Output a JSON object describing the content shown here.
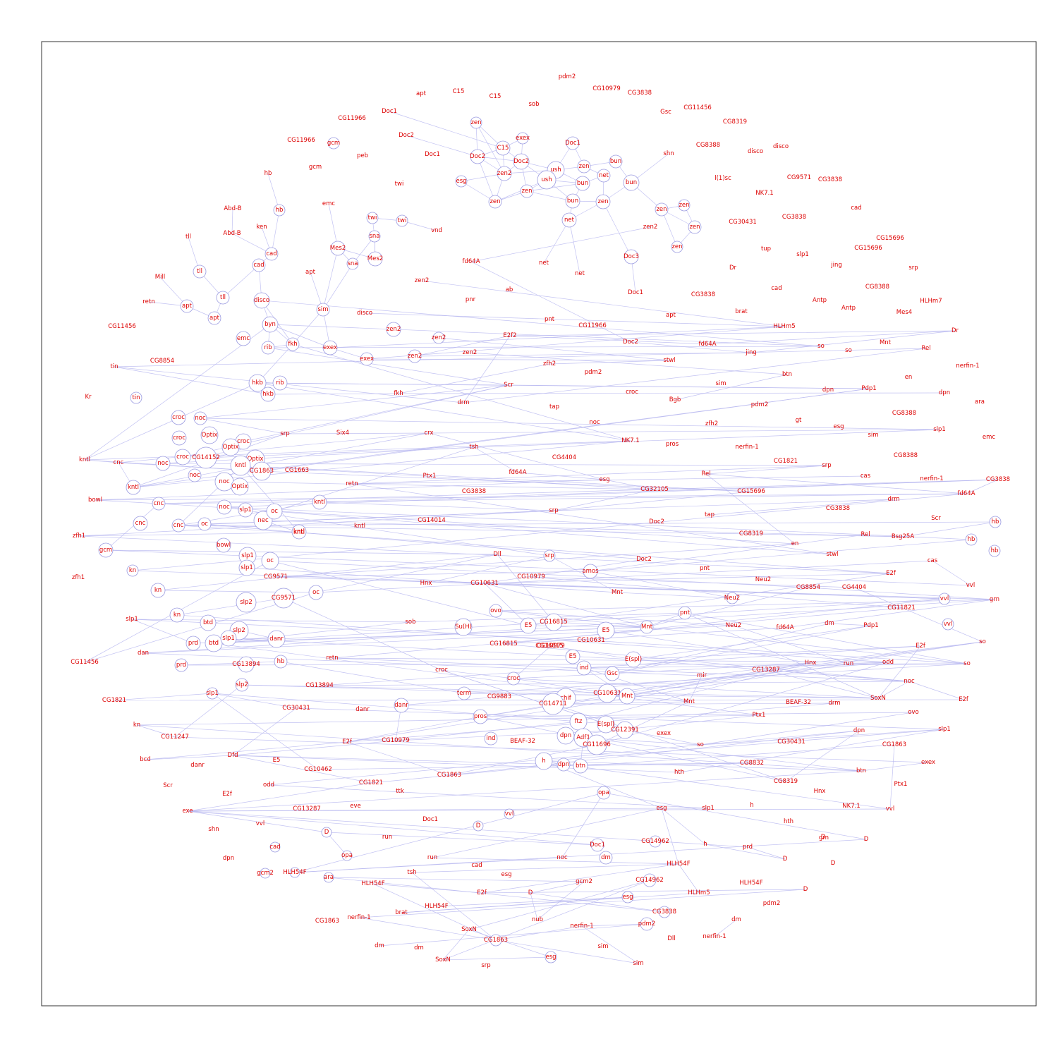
{
  "colors": {
    "label": "#dd0000",
    "edge": "#b8b8f0",
    "node_stroke": "#9a9ae0",
    "frame": "#333333"
  },
  "node_labels": [
    "pdm2",
    "CG10979",
    "CG3838",
    "apt",
    "C15",
    "C15",
    "CG11456",
    "Gsc",
    "CG8319",
    "sob",
    "Doc1",
    "CG11966",
    "Doc2",
    "zen",
    "exex",
    "CG11966",
    "gcm",
    "peb",
    "Doc1",
    "Doc2",
    "C15",
    "Doc1",
    "Doc2",
    "CG8388",
    "disco",
    "disco",
    "shn",
    "zen",
    "gcm",
    "ush",
    "bun",
    "hb",
    "esg",
    "zen2",
    "ush",
    "net",
    "twi",
    "bun",
    "emc",
    "Abd-B",
    "hb",
    "zen",
    "zen",
    "bun",
    "bun",
    "net",
    "zen",
    "CG9571",
    "CG3838",
    "l(1)sc",
    "zen",
    "NK7.1",
    "cad",
    "CG3838",
    "Abd-B",
    "ken",
    "twi",
    "zen",
    "twi",
    "vnd",
    "zen2",
    "zen",
    "CG30431",
    "cad",
    "sna",
    "tll",
    "cad",
    "Mes2",
    "CG15696",
    "sna",
    "Mes2",
    "zen",
    "slp1",
    "Doc3",
    "fd64A",
    "net",
    "CG15696",
    "net",
    "tup",
    "jing",
    "srp",
    "Mill",
    "tll",
    "apt",
    "Dr",
    "Doc1",
    "ab",
    "CG3838",
    "zen2",
    "cad",
    "CG8388",
    "tll",
    "retn",
    "apt",
    "disco",
    "pnr",
    "Antp",
    "HLHm7",
    "apt",
    "Antp",
    "CG11456",
    "pnt",
    "CG11966",
    "sim",
    "apt",
    "Mes4",
    "brat",
    "disco",
    "Doc2",
    "zen2",
    "HLHm5",
    "Dr",
    "emc",
    "fd64A",
    "so",
    "E2f2",
    "Mnt",
    "Rel",
    "byn",
    "jing",
    "so",
    "rib",
    "zen2",
    "fkh",
    "exex",
    "zen2",
    "zen2",
    "exex",
    "CG8854",
    "stwl",
    "tin",
    "zfh2",
    "nerfin-1",
    "pdm2",
    "btn",
    "Scr",
    "hkb",
    "rib",
    "sim",
    "en",
    "dpn",
    "Pdp1",
    "tin",
    "hkb",
    "Kr",
    "fkh",
    "croc",
    "dpn",
    "Bgb",
    "drm",
    "pdm2",
    "noc",
    "tap",
    "ara",
    "CG8388",
    "gt",
    "croc",
    "esg",
    "zfh2",
    "croc",
    "noc",
    "Optix",
    "Six4",
    "slp1",
    "srp",
    "crx",
    "sim",
    "croc",
    "croc",
    "CG14152",
    "Optix",
    "NK7.1",
    "pros",
    "nerfin-1",
    "emc",
    "kntl",
    "cnc",
    "kntl",
    "Optix",
    "tsh",
    "noc",
    "CG1663",
    "CG8388",
    "CG4404",
    "CG1821",
    "srp",
    "noc",
    "Ptx1",
    "fd64A",
    "Rel",
    "kntl",
    "CG1863",
    "CG3838",
    "noc",
    "Optix",
    "cas",
    "retn",
    "nerfin-1",
    "CG3838",
    "esg",
    "CG32105",
    "kntl",
    "cnc",
    "CG15696",
    "bowl",
    "fd64A",
    "noc",
    "kntl",
    "oc",
    "srp",
    "tap",
    "drm",
    "slp1",
    "CG3838",
    "CG14014",
    "nec",
    "cnc",
    "cnc",
    "oc",
    "kntl",
    "Doc2",
    "Scr",
    "kntl",
    "zfh1",
    "Bsg25A",
    "hb",
    "en",
    "CG8319",
    "Rel",
    "hb",
    "gcm",
    "bowl",
    "stwl",
    "cas",
    "hb",
    "slp1",
    "Dll",
    "oc",
    "srp",
    "zfh1",
    "kn",
    "CG9571",
    "Doc2",
    "pnt",
    "Neu2",
    "E2f",
    "Hnx",
    "CG10631",
    "CG10979",
    "amos",
    "CG8854",
    "CG4404",
    "vvl",
    "kn",
    "oc",
    "slp1",
    "CG9571",
    "slp2",
    "Mnt",
    "Neu2",
    "CG11821",
    "vvl",
    "grn",
    "ovo",
    "CG16815",
    "E5",
    "Mnt",
    "pnt",
    "sob",
    "slp1",
    "kn",
    "btd",
    "Su(H)",
    "E5",
    "Neu2",
    "fd64A",
    "dm",
    "Pdp1",
    "vvl",
    "slp2",
    "CG16815",
    "CG10631",
    "prd",
    "btd",
    "slp1",
    "danr",
    "CG16815",
    "CG10979",
    "so",
    "dan",
    "retn",
    "E5",
    "E(spl)",
    "E2f",
    "ind",
    "so",
    "CG11456",
    "prd",
    "hb",
    "CG13894",
    "croc",
    "croc",
    "Gsc",
    "Hnx",
    "run",
    "odd",
    "noc",
    "mir",
    "CG13287",
    "CG13894",
    "term",
    "chif",
    "CG10631",
    "Mnt",
    "slp2",
    "danr",
    "CG9883",
    "CG14711",
    "Mnt",
    "SoxN",
    "BEAF-32",
    "drm",
    "E2f",
    "CG1821",
    "slp1",
    "CG30431",
    "danr",
    "pros",
    "ftz",
    "E(spl)",
    "CG12391",
    "ovo",
    "Ptx1",
    "kn",
    "CG11247",
    "exex",
    "ind",
    "dpn",
    "Adf1",
    "E2f",
    "CG10979",
    "BEAF-32",
    "CG11696",
    "slp1",
    "so",
    "dpn",
    "btn",
    "CG30431",
    "bcd",
    "Dfd",
    "E5",
    "danr",
    "h",
    "dpn",
    "CG1863",
    "CG1863",
    "CG8832",
    "hth",
    "btn",
    "exex",
    "CG10462",
    "CG1821",
    "odd",
    "Ptx1",
    "CG8319",
    "ttk",
    "Scr",
    "E2f",
    "CG13287",
    "Hnx",
    "NK7.1",
    "eve",
    "opa",
    "esg",
    "slp1",
    "vvl",
    "exe",
    "h",
    "vvl",
    "hth",
    "D",
    "shn",
    "vvl",
    "Doc1",
    "dm",
    "D",
    "grn",
    "cad",
    "run",
    "CG14962",
    "h",
    "prd",
    "D",
    "Doc1",
    "D",
    "dpn",
    "opa",
    "noc",
    "dm",
    "D",
    "D",
    "gcm2",
    "HLH54F",
    "run",
    "cad",
    "gcm2",
    "HLH54F",
    "tsh",
    "esg",
    "CG14962",
    "HLH54F",
    "HLH54F",
    "E2f",
    "D",
    "HLHm5",
    "esg",
    "D",
    "pdm2",
    "ara",
    "CG3838",
    "brat",
    "nerfin-1",
    "HLH54F",
    "dm",
    "nub",
    "CG1863",
    "pdm2",
    "nerfin-1",
    "Dll",
    "nerfin-1",
    "SoxN",
    "dm",
    "CG1863",
    "dm",
    "sim",
    "SoxN",
    "esg",
    "srp",
    "sim"
  ]
}
